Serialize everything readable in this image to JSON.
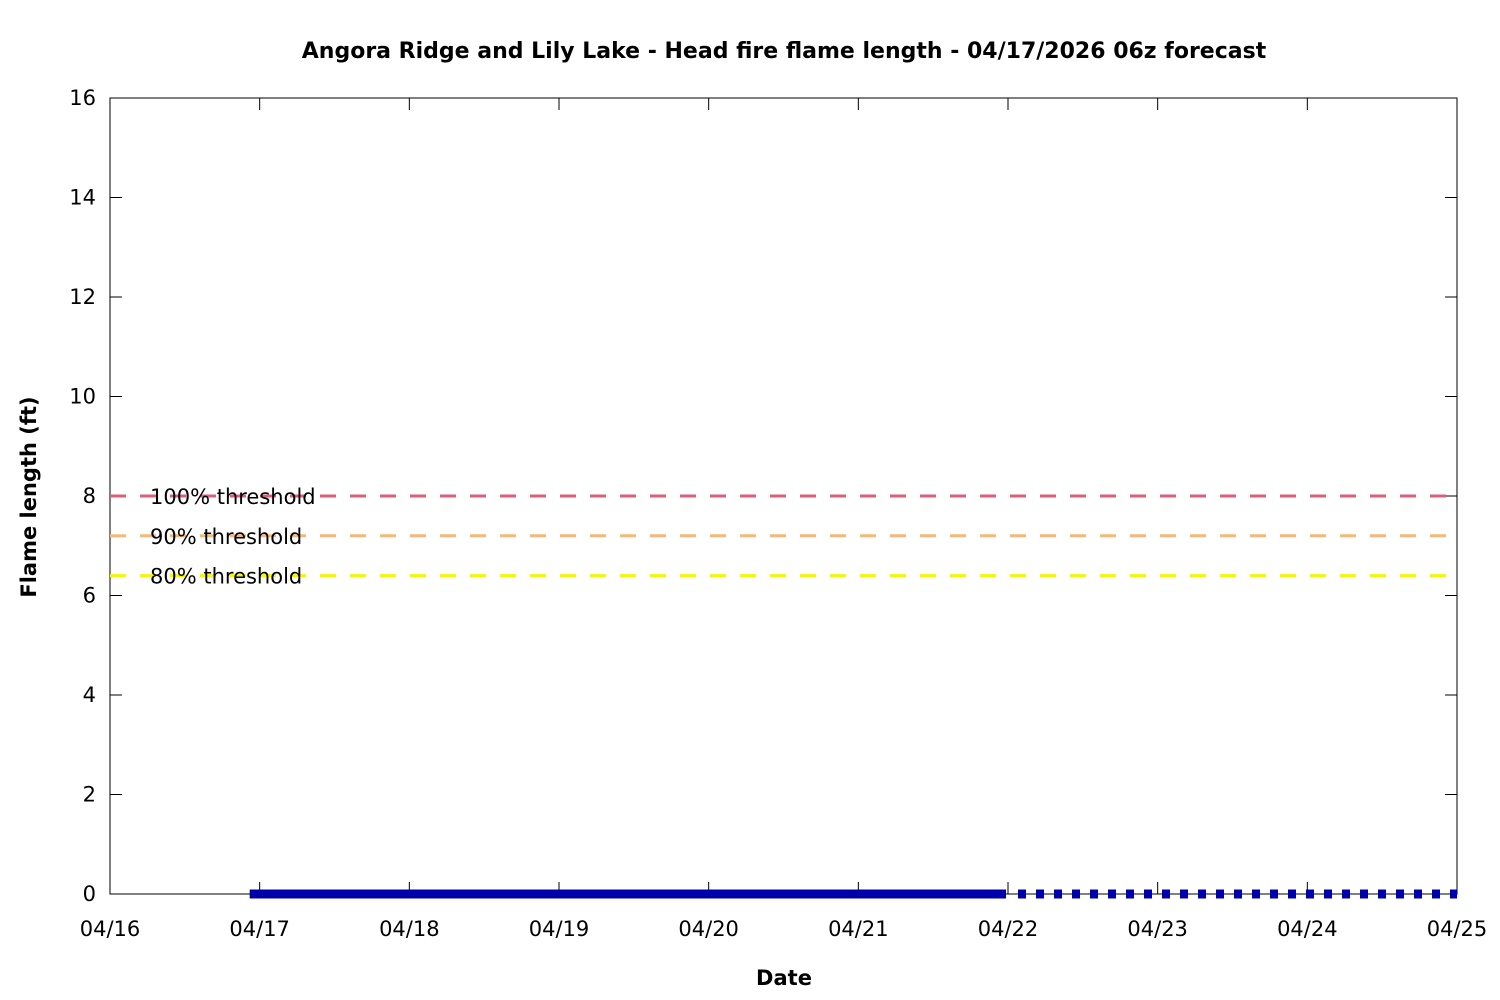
{
  "chart_data": {
    "type": "line",
    "title": "Angora Ridge and Lily Lake - Head fire flame length - 04/17/2026 06z forecast",
    "xlabel": "Date",
    "ylabel": "Flame length (ft)",
    "xlim": [
      "04/16",
      "04/25"
    ],
    "ylim": [
      0,
      16
    ],
    "x_ticks": [
      "04/16",
      "04/17",
      "04/18",
      "04/19",
      "04/20",
      "04/21",
      "04/22",
      "04/23",
      "04/24",
      "04/25"
    ],
    "y_ticks": [
      0,
      2,
      4,
      6,
      8,
      10,
      12,
      14,
      16
    ],
    "grid": false,
    "legend_position": "left",
    "thresholds": [
      {
        "name": "100% threshold",
        "value": 8.0,
        "color": "#d95f7a",
        "style": "dashed"
      },
      {
        "name": "90% threshold",
        "value": 7.2,
        "color": "#f4b87a",
        "style": "dashed"
      },
      {
        "name": "80% threshold",
        "value": 6.4,
        "color": "#f5f50a",
        "style": "dashed"
      }
    ],
    "series": [
      {
        "style": "solid",
        "color": "#0000aa",
        "x_start": "04/17 00z",
        "x_end": "04/22 00z",
        "values": [
          0
        ]
      },
      {
        "style": "dotted",
        "color": "#0000aa",
        "x_start": "04/22 00z",
        "x_end": "04/25 00z",
        "values": [
          0
        ]
      }
    ]
  }
}
